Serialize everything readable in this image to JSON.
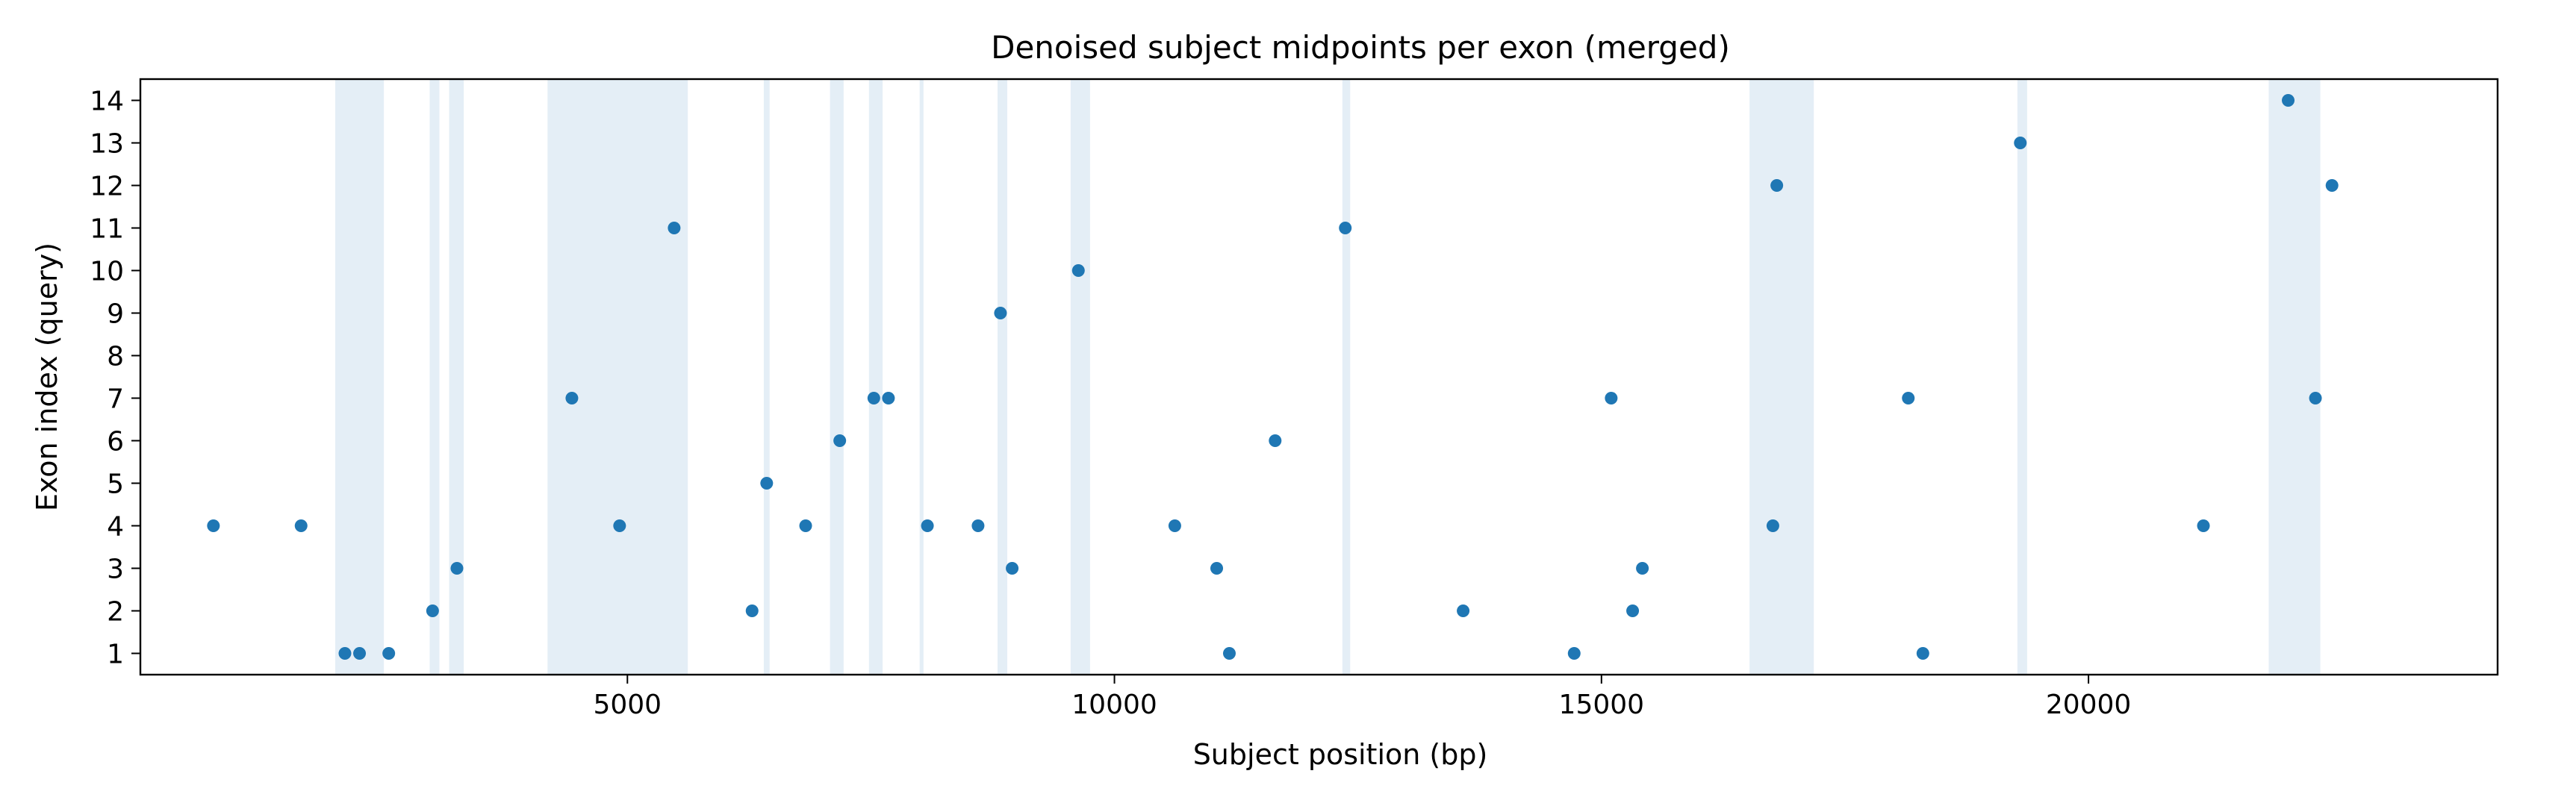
{
  "chart_data": {
    "type": "scatter",
    "title": "Denoised subject midpoints per exon (merged)",
    "xlabel": "Subject position (bp)",
    "ylabel": "Exon index (query)",
    "xlim": [
      0,
      24200
    ],
    "ylim": [
      0.5,
      14.5
    ],
    "xticks": [
      5000,
      10000,
      15000,
      20000
    ],
    "yticks": [
      1,
      2,
      3,
      4,
      5,
      6,
      7,
      8,
      9,
      10,
      11,
      12,
      13,
      14
    ],
    "grid": false,
    "point_color": "#1f77b4",
    "band_color": "#1f77b4",
    "shaded_regions": [
      [
        2000,
        2500
      ],
      [
        2970,
        3070
      ],
      [
        3170,
        3320
      ],
      [
        4180,
        5620
      ],
      [
        6400,
        6460
      ],
      [
        7080,
        7220
      ],
      [
        7480,
        7620
      ],
      [
        8000,
        8040
      ],
      [
        8800,
        8900
      ],
      [
        9550,
        9750
      ],
      [
        12340,
        12420
      ],
      [
        16520,
        17180
      ],
      [
        19270,
        19370
      ],
      [
        21850,
        22380
      ]
    ],
    "points": [
      {
        "x": 750,
        "y": 4
      },
      {
        "x": 1650,
        "y": 4
      },
      {
        "x": 2100,
        "y": 1
      },
      {
        "x": 2250,
        "y": 1
      },
      {
        "x": 2550,
        "y": 1
      },
      {
        "x": 3000,
        "y": 2
      },
      {
        "x": 3250,
        "y": 3
      },
      {
        "x": 4430,
        "y": 7
      },
      {
        "x": 4920,
        "y": 4
      },
      {
        "x": 5480,
        "y": 11
      },
      {
        "x": 6280,
        "y": 2
      },
      {
        "x": 6430,
        "y": 5
      },
      {
        "x": 6830,
        "y": 4
      },
      {
        "x": 7180,
        "y": 6
      },
      {
        "x": 7530,
        "y": 7
      },
      {
        "x": 7680,
        "y": 7
      },
      {
        "x": 8080,
        "y": 4
      },
      {
        "x": 8600,
        "y": 4
      },
      {
        "x": 8830,
        "y": 9
      },
      {
        "x": 8950,
        "y": 3
      },
      {
        "x": 9630,
        "y": 10
      },
      {
        "x": 10620,
        "y": 4
      },
      {
        "x": 11050,
        "y": 3
      },
      {
        "x": 11180,
        "y": 1
      },
      {
        "x": 11650,
        "y": 6
      },
      {
        "x": 12370,
        "y": 11
      },
      {
        "x": 13580,
        "y": 2
      },
      {
        "x": 14720,
        "y": 1
      },
      {
        "x": 15100,
        "y": 7
      },
      {
        "x": 15320,
        "y": 2
      },
      {
        "x": 15420,
        "y": 3
      },
      {
        "x": 16760,
        "y": 4
      },
      {
        "x": 16800,
        "y": 12
      },
      {
        "x": 18150,
        "y": 7
      },
      {
        "x": 18300,
        "y": 1
      },
      {
        "x": 19300,
        "y": 13
      },
      {
        "x": 21180,
        "y": 4
      },
      {
        "x": 22050,
        "y": 14
      },
      {
        "x": 22330,
        "y": 7
      },
      {
        "x": 22500,
        "y": 12
      }
    ]
  }
}
